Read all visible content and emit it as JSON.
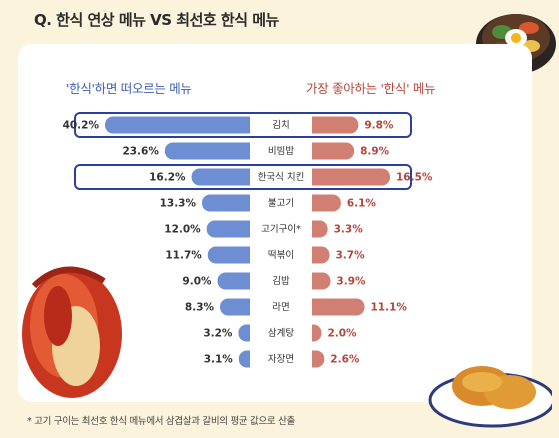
{
  "title": "Q. 한식 연상 메뉴 VS 최선호 한식 메뉴",
  "footnote": "* 고기 구이는 최선호 한식 메뉴에서 삼겹살과 갈비의 평균 값으로 산출",
  "colors": {
    "left_bar": "#6d8ed2",
    "right_bar": "#d27f73",
    "highlight": "#2b3f9e",
    "left_label": "#3f5fae",
    "right_label": "#b4473c"
  },
  "chart_data": {
    "type": "bar",
    "layout": "butterfly",
    "left_title": "'한식'하면 떠오르는 메뉴",
    "right_title": "가장 좋아하는 '한식' 메뉴",
    "categories": [
      "김치",
      "비빔밥",
      "한국식 치킨",
      "불고기",
      "고기구이*",
      "떡볶이",
      "김밥",
      "라면",
      "삼계탕",
      "자장면"
    ],
    "series": [
      {
        "name": "'한식'하면 떠오르는 메뉴",
        "side": "left",
        "values": [
          40.2,
          23.6,
          16.2,
          13.3,
          12.0,
          11.7,
          9.0,
          8.3,
          3.2,
          3.1
        ],
        "labels": [
          "40.2%",
          "23.6%",
          "16.2%",
          "13.3%",
          "12.0%",
          "11.7%",
          "9.0%",
          "8.3%",
          "3.2%",
          "3.1%"
        ]
      },
      {
        "name": "가장 좋아하는 '한식' 메뉴",
        "side": "right",
        "values": [
          9.8,
          8.9,
          16.5,
          6.1,
          3.3,
          3.7,
          3.9,
          11.1,
          2.0,
          2.6
        ],
        "labels": [
          "9.8%",
          "8.9%",
          "16.5%",
          "6.1%",
          "3.3%",
          "3.7%",
          "3.9%",
          "11.1%",
          "2.0%",
          "2.6%"
        ]
      }
    ],
    "highlighted_categories": [
      "김치",
      "한국식 치킨"
    ]
  }
}
